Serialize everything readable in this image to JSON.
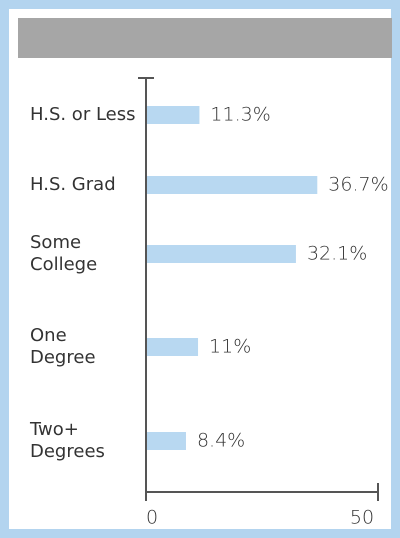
{
  "chart_data": {
    "type": "barh",
    "categories": [
      "H.S. or Less",
      "H.S. Grad",
      "Some\nCollege",
      "One\nDegree",
      "Two+\nDegrees"
    ],
    "values": [
      11.3,
      36.7,
      32.1,
      11,
      8.4
    ],
    "value_labels": [
      "11.3%",
      "36.7%",
      "32.1%",
      "11%",
      "8.4%"
    ],
    "color": "#b8d8f1",
    "xlim": [
      0,
      50
    ],
    "xticks": [
      0,
      50
    ]
  }
}
